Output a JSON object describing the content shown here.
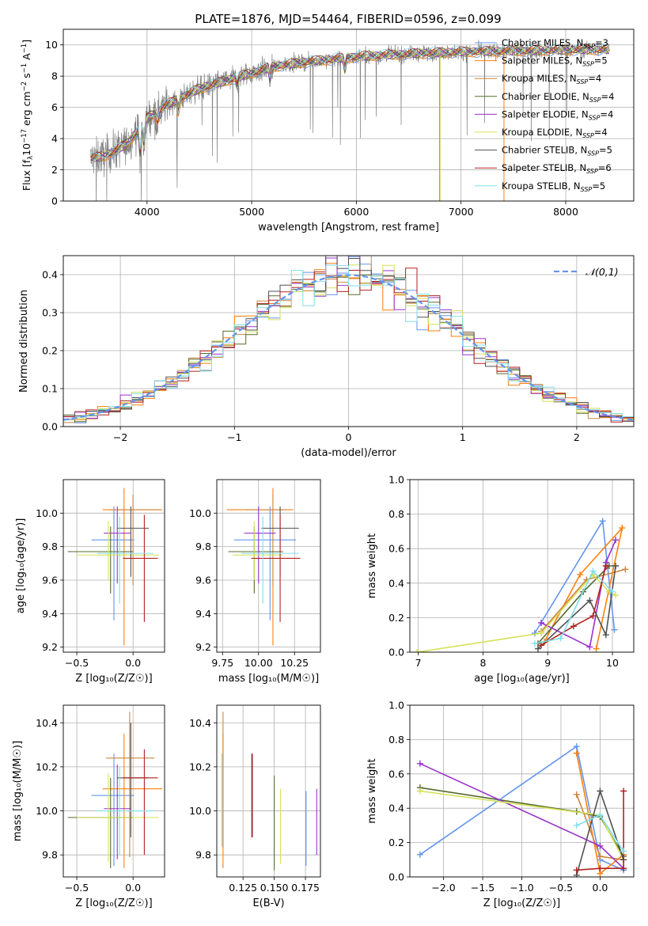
{
  "title": "PLATE=1876, MJD=54464, FIBERID=0596, z=0.099",
  "colors": [
    "#6495ed",
    "#ff7f0e",
    "#cd853f",
    "#556b2f",
    "#9932cc",
    "#d4e157",
    "#505050",
    "#b22222",
    "#80deea"
  ],
  "legend_spectrum": [
    {
      "label": "Chabrier MILES, N",
      "sub": "SSP",
      "tail": "=3"
    },
    {
      "label": "Salpeter MILES, N",
      "sub": "SSP",
      "tail": "=5"
    },
    {
      "label": "Kroupa MILES, N",
      "sub": "SSP",
      "tail": "=4"
    },
    {
      "label": "Chabrier ELODIE, N",
      "sub": "SSP",
      "tail": "=4"
    },
    {
      "label": "Salpeter ELODIE, N",
      "sub": "SSP",
      "tail": "=4"
    },
    {
      "label": "Kroupa ELODIE, N",
      "sub": "SSP",
      "tail": "=4"
    },
    {
      "label": "Chabrier STELIB, N",
      "sub": "SSP",
      "tail": "=5"
    },
    {
      "label": "Salpeter STELIB, N",
      "sub": "SSP",
      "tail": "=6"
    },
    {
      "label": "Kroupa STELIB, N",
      "sub": "SSP",
      "tail": "=5"
    }
  ],
  "chart_data": [
    {
      "id": "spectrum",
      "type": "line",
      "xlabel": "wavelength [Angstrom, rest frame]",
      "ylabel_parts": [
        "Flux [f",
        "λ",
        "10",
        "−17",
        " erg cm",
        "−2",
        " s",
        "−1",
        " A",
        "−1",
        "]"
      ],
      "xlim": [
        3200,
        8650
      ],
      "ylim": [
        0,
        11
      ],
      "xticks": [
        4000,
        5000,
        6000,
        7000,
        8000
      ],
      "yticks": [
        0,
        2,
        4,
        6,
        8,
        10
      ],
      "data_color": "#808080",
      "continuum": {
        "x": [
          3450,
          3600,
          3800,
          4000,
          4200,
          4500,
          4800,
          5000,
          5200,
          5500,
          5800,
          6000,
          6300,
          6600,
          7000,
          7400,
          7800,
          8200,
          8400
        ],
        "y": [
          2.7,
          2.9,
          3.6,
          5.3,
          6.2,
          7.2,
          7.8,
          8.2,
          8.6,
          8.9,
          9.1,
          9.25,
          9.35,
          9.45,
          9.55,
          9.6,
          9.65,
          9.7,
          9.7
        ]
      },
      "absorption": [
        {
          "x": 3934,
          "depth": 1.8
        },
        {
          "x": 3969,
          "depth": 1.6
        },
        {
          "x": 4101,
          "depth": 0.6
        },
        {
          "x": 4300,
          "depth": 0.8
        },
        {
          "x": 4861,
          "depth": 0.5
        },
        {
          "x": 5175,
          "depth": 0.7
        },
        {
          "x": 5890,
          "depth": 0.7
        }
      ]
    },
    {
      "id": "residuals",
      "type": "histogram",
      "xlabel": "(data-model)/error",
      "ylabel": "Normed distribution",
      "xlim": [
        -2.5,
        2.5
      ],
      "ylim": [
        0,
        0.45
      ],
      "xticks": [
        -2,
        -1,
        0,
        1,
        2
      ],
      "yticks": [
        0.0,
        0.1,
        0.2,
        0.3,
        0.4
      ],
      "bins": {
        "start": -2.5,
        "width": 0.1,
        "count": 50
      },
      "reference": {
        "label": "𝒩(0,1)",
        "mean": 0,
        "sigma": 1,
        "color": "#6495ed"
      }
    },
    {
      "id": "age_vs_Z",
      "type": "scatter",
      "xlabel": "Z [log₁₀(Z/Z☉)]",
      "ylabel": "age  [log₁₀(age/yr)]",
      "xlim": [
        -0.62,
        0.28
      ],
      "ylim": [
        9.17,
        10.2
      ],
      "xticks": [
        -0.5,
        0.0
      ],
      "yticks": [
        9.2,
        9.4,
        9.6,
        9.8,
        10.0
      ],
      "points": [
        {
          "x": -0.17,
          "y": 9.84,
          "xerr": [
            0.2,
            0.18
          ],
          "yerr": [
            0.48,
            0.2
          ]
        },
        {
          "x": -0.08,
          "y": 10.02,
          "xerr": [
            0.19,
            0.34
          ],
          "yerr": [
            0.81,
            0.13
          ]
        },
        {
          "x": 0.0,
          "y": 10.02,
          "xerr": [
            0.21,
            0.24
          ],
          "yerr": [
            0.45,
            0.09
          ]
        },
        {
          "x": -0.2,
          "y": 9.77,
          "xerr": [
            0.38,
            0.2
          ],
          "yerr": [
            0.25,
            0.15
          ]
        },
        {
          "x": -0.14,
          "y": 9.88,
          "xerr": [
            0.12,
            0.12
          ],
          "yerr": [
            0.3,
            0.16
          ]
        },
        {
          "x": -0.22,
          "y": 9.75,
          "xerr": [
            0.28,
            0.45
          ],
          "yerr": [
            0.15,
            0.2
          ]
        },
        {
          "x": -0.02,
          "y": 9.91,
          "xerr": [
            0.12,
            0.16
          ],
          "yerr": [
            0.29,
            0.13
          ]
        },
        {
          "x": 0.1,
          "y": 9.73,
          "xerr": [
            0.19,
            0.12
          ],
          "yerr": [
            0.38,
            0.26
          ]
        },
        {
          "x": -0.12,
          "y": 9.76,
          "xerr": [
            0.2,
            0.3
          ],
          "yerr": [
            0.3,
            0.22
          ]
        }
      ]
    },
    {
      "id": "age_vs_mass",
      "type": "scatter",
      "xlabel": "mass [log₁₀(M/M☉)]",
      "ylabel": "",
      "xlim": [
        9.71,
        10.43
      ],
      "ylim": [
        9.17,
        10.2
      ],
      "xticks": [
        9.75,
        10.0,
        10.25
      ],
      "yticks": [
        9.2,
        9.4,
        9.6,
        9.8,
        10.0
      ],
      "points": [
        {
          "x": 10.08,
          "y": 9.84,
          "xerr": [
            0.25,
            0.18
          ],
          "yerr": [
            0.48,
            0.2
          ]
        },
        {
          "x": 10.1,
          "y": 10.02,
          "xerr": [
            0.32,
            0.14
          ],
          "yerr": [
            0.81,
            0.13
          ]
        },
        {
          "x": 10.1,
          "y": 10.02,
          "xerr": [
            0.19,
            0.1
          ],
          "yerr": [
            0.45,
            0.09
          ]
        },
        {
          "x": 9.97,
          "y": 9.77,
          "xerr": [
            0.18,
            0.2
          ],
          "yerr": [
            0.25,
            0.15
          ]
        },
        {
          "x": 10.0,
          "y": 9.88,
          "xerr": [
            0.1,
            0.12
          ],
          "yerr": [
            0.3,
            0.16
          ]
        },
        {
          "x": 9.97,
          "y": 9.75,
          "xerr": [
            0.15,
            0.2
          ],
          "yerr": [
            0.15,
            0.2
          ]
        },
        {
          "x": 10.15,
          "y": 9.91,
          "xerr": [
            0.13,
            0.13
          ],
          "yerr": [
            0.29,
            0.13
          ]
        },
        {
          "x": 10.15,
          "y": 9.73,
          "xerr": [
            0.2,
            0.14
          ],
          "yerr": [
            0.38,
            0.26
          ]
        },
        {
          "x": 10.03,
          "y": 9.76,
          "xerr": [
            0.15,
            0.25
          ],
          "yerr": [
            0.3,
            0.22
          ]
        }
      ]
    },
    {
      "id": "weight_vs_age",
      "type": "line",
      "xlabel": "age  [log₁₀(age/yr)]",
      "ylabel": "mass weight",
      "xlim": [
        6.87,
        10.33
      ],
      "ylim": [
        0,
        1
      ],
      "xticks": [
        7,
        8,
        9,
        10
      ],
      "yticks": [
        0.0,
        0.2,
        0.4,
        0.6,
        0.8,
        1.0
      ],
      "series": [
        {
          "x": [
            8.8,
            9.85,
            10.03
          ],
          "y": [
            0.11,
            0.76,
            0.13
          ]
        },
        {
          "x": 8.95,
          "y": 0,
          "skip": true
        },
        {
          "x": [
            8.95,
            9.5,
            10.15,
            9.75
          ],
          "y": [
            0.06,
            0.45,
            0.72,
            0.02
          ]
        },
        {
          "x": [
            8.9,
            9.6,
            10.2
          ],
          "y": [
            0.12,
            0.42,
            0.48
          ]
        },
        {
          "x": [
            8.85,
            9.55,
            9.95
          ],
          "y": [
            0.05,
            0.35,
            0.5
          ]
        },
        {
          "x": [
            8.9,
            9.65,
            9.9,
            10.05
          ],
          "y": [
            0.17,
            0.03,
            0.52,
            0.65
          ]
        },
        {
          "x": [
            6.98,
            8.9,
            9.7,
            9.95,
            10.05
          ],
          "y": [
            0.0,
            0.11,
            0.45,
            0.35,
            0.33
          ]
        },
        {
          "x": [
            8.85,
            9.65,
            9.9,
            10.05
          ],
          "y": [
            0.02,
            0.3,
            0.1,
            0.5
          ]
        },
        {
          "x": [
            8.9,
            9.4,
            9.7,
            9.9
          ],
          "y": [
            0.04,
            0.15,
            0.21,
            0.5
          ]
        },
        {
          "x": [
            8.8,
            9.2,
            9.7,
            10.0
          ],
          "y": [
            0.05,
            0.08,
            0.47,
            0.35
          ]
        }
      ]
    },
    {
      "id": "mass_vs_Z",
      "type": "scatter",
      "xlabel": "Z [log₁₀(Z/Z☉)]",
      "ylabel": "mass [log₁₀(M/M☉)]",
      "xlim": [
        -0.62,
        0.28
      ],
      "ylim": [
        9.7,
        10.48
      ],
      "xticks": [
        -0.5,
        0.0
      ],
      "yticks": [
        9.8,
        10.0,
        10.2,
        10.4
      ],
      "points": [
        {
          "x": -0.17,
          "y": 10.07,
          "xerr": [
            0.2,
            0.18
          ],
          "yerr": [
            0.32,
            0.19
          ]
        },
        {
          "x": -0.08,
          "y": 10.1,
          "xerr": [
            0.19,
            0.34
          ],
          "yerr": [
            0.36,
            0.25
          ]
        },
        {
          "x": -0.03,
          "y": 10.24,
          "xerr": [
            0.21,
            0.22
          ],
          "yerr": [
            0.45,
            0.21
          ]
        },
        {
          "x": -0.2,
          "y": 9.97,
          "xerr": [
            0.38,
            0.2
          ],
          "yerr": [
            0.23,
            0.18
          ]
        },
        {
          "x": -0.14,
          "y": 10.01,
          "xerr": [
            0.12,
            0.12
          ],
          "yerr": [
            0.23,
            0.2
          ]
        },
        {
          "x": -0.22,
          "y": 9.97,
          "xerr": [
            0.28,
            0.45
          ],
          "yerr": [
            0.2,
            0.2
          ]
        },
        {
          "x": -0.02,
          "y": 10.15,
          "xerr": [
            0.12,
            0.16
          ],
          "yerr": [
            0.27,
            0.25
          ]
        },
        {
          "x": 0.1,
          "y": 10.15,
          "xerr": [
            0.19,
            0.12
          ],
          "yerr": [
            0.35,
            0.13
          ]
        },
        {
          "x": -0.12,
          "y": 10.0,
          "xerr": [
            0.2,
            0.3
          ],
          "yerr": [
            0.2,
            0.2
          ]
        }
      ]
    },
    {
      "id": "mass_vs_ebv",
      "type": "scatter",
      "xlabel": "E(B-V)",
      "ylabel": "",
      "xlim": [
        0.104,
        0.187
      ],
      "ylim": [
        9.7,
        10.48
      ],
      "xticks": [
        0.125,
        0.15,
        0.175
      ],
      "yticks": [
        9.8,
        10.0,
        10.2,
        10.4
      ],
      "points": [
        {
          "x": 0.1755,
          "y": 9.93,
          "yerr": [
            0.18,
            0.16
          ]
        },
        {
          "x": 0.109,
          "y": 10.05,
          "yerr": [
            0.31,
            0.3
          ]
        },
        {
          "x": 0.109,
          "y": 10.1,
          "yerr": [
            0.27,
            0.35
          ]
        },
        {
          "x": 0.15,
          "y": 9.95,
          "yerr": [
            0.22,
            0.21
          ]
        },
        {
          "x": 0.184,
          "y": 9.95,
          "yerr": [
            0.15,
            0.15
          ]
        },
        {
          "x": 0.155,
          "y": 9.93,
          "yerr": [
            0.17,
            0.17
          ]
        },
        {
          "x": 0.132,
          "y": 10.08,
          "yerr": [
            0.2,
            0.18
          ]
        },
        {
          "x": 0.1325,
          "y": 10.07,
          "yerr": [
            0.19,
            0.19
          ]
        },
        {
          "x": 0.108,
          "y": 10.05,
          "yerr": [
            0.21,
            0.21
          ]
        }
      ]
    },
    {
      "id": "weight_vs_Z",
      "type": "line",
      "xlabel": "Z [log₁₀(Z/Z☉)]",
      "ylabel": "mass weight",
      "xlim": [
        -2.43,
        0.43
      ],
      "ylim": [
        0,
        1
      ],
      "xticks": [
        -2.0,
        -1.5,
        -1.0,
        -0.5,
        0.0
      ],
      "yticks": [
        0.0,
        0.2,
        0.4,
        0.6,
        0.8,
        1.0
      ],
      "series": [
        {
          "x": [
            -2.3,
            -0.3,
            0.0,
            0.3
          ],
          "y": [
            0.13,
            0.76,
            0.1,
            0.04
          ]
        },
        {
          "x": [
            -0.3,
            0.0,
            0.3
          ],
          "y": [
            0.72,
            0.02,
            0.13
          ]
        },
        {
          "x": [
            -0.3,
            0.0,
            0.3
          ],
          "y": [
            0.48,
            0.12,
            0.1
          ]
        },
        {
          "x": [
            -2.3,
            -0.3,
            0.0,
            0.3
          ],
          "y": [
            0.52,
            0.38,
            0.35,
            0.12
          ]
        },
        {
          "x": [
            -2.3,
            0.0,
            0.3
          ],
          "y": [
            0.66,
            0.18,
            0.05
          ]
        },
        {
          "x": [
            -2.3,
            0.0,
            0.3
          ],
          "y": [
            0.5,
            0.36,
            0.1
          ]
        },
        {
          "x": [
            -0.3,
            0.0,
            0.3
          ],
          "y": [
            0.01,
            0.5,
            0.1
          ]
        },
        {
          "x": [
            -0.3,
            0.0,
            0.3,
            0.3
          ],
          "y": [
            0.04,
            0.05,
            0.05,
            0.5
          ]
        },
        {
          "x": [
            -0.3,
            0.0,
            0.3
          ],
          "y": [
            0.3,
            0.36,
            0.15
          ]
        }
      ]
    }
  ]
}
